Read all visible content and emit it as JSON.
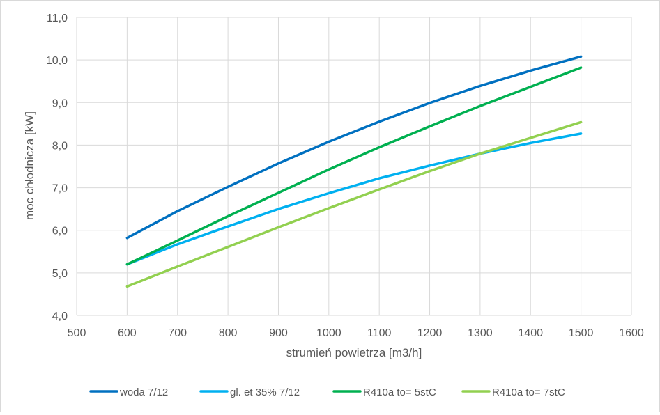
{
  "chart_data": {
    "type": "line",
    "title": "",
    "xlabel": "strumień powietrza [m3/h]",
    "ylabel": "moc chłodnicza [kW]",
    "xlim": [
      500,
      1600
    ],
    "ylim": [
      4.0,
      11.0
    ],
    "x_ticks": [
      "500",
      "600",
      "700",
      "800",
      "900",
      "1000",
      "1100",
      "1200",
      "1300",
      "1400",
      "1500",
      "1600"
    ],
    "y_ticks": [
      "4,0",
      "5,0",
      "6,0",
      "7,0",
      "8,0",
      "9,0",
      "10,0",
      "11,0"
    ],
    "grid": true,
    "legend_position": "bottom",
    "x": [
      600,
      700,
      800,
      900,
      1000,
      1100,
      1200,
      1300,
      1400,
      1500
    ],
    "series": [
      {
        "name": "woda 7/12",
        "color": "#0070c0",
        "values": [
          5.82,
          6.45,
          7.02,
          7.57,
          8.08,
          8.55,
          8.99,
          9.39,
          9.75,
          10.08
        ]
      },
      {
        "name": "gl. et 35% 7/12",
        "color": "#00b0f0",
        "values": [
          5.2,
          5.67,
          6.09,
          6.5,
          6.87,
          7.22,
          7.52,
          7.8,
          8.05,
          8.27
        ]
      },
      {
        "name": "R410a to= 5stC",
        "color": "#00b050",
        "values": [
          5.2,
          5.76,
          6.33,
          6.88,
          7.43,
          7.95,
          8.44,
          8.92,
          9.37,
          9.82
        ]
      },
      {
        "name": "R410a to= 7stC",
        "color": "#92d050",
        "values": [
          4.68,
          5.15,
          5.61,
          6.07,
          6.52,
          6.96,
          7.39,
          7.8,
          8.17,
          8.54
        ]
      }
    ]
  }
}
